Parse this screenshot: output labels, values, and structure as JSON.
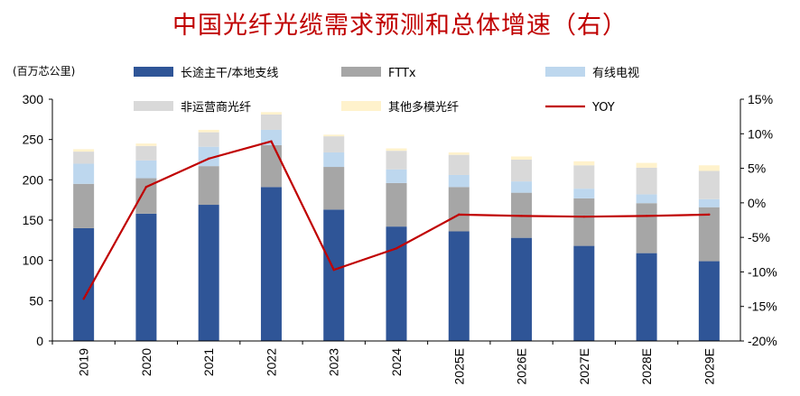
{
  "chart_data": {
    "type": "bar",
    "title": "中国光纤光缆需求预测和总体增速（右）",
    "ylabel": "(百万芯公里)",
    "categories": [
      "2019",
      "2020",
      "2021",
      "2022",
      "2023",
      "2024",
      "2025E",
      "2026E",
      "2027E",
      "2028E",
      "2029E"
    ],
    "ylim": [
      0,
      300
    ],
    "yticks": [
      0,
      50,
      100,
      150,
      200,
      250,
      300
    ],
    "y2lim": [
      -20,
      15
    ],
    "y2ticks": [
      "-20%",
      "-15%",
      "-10%",
      "-5%",
      "0%",
      "5%",
      "10%",
      "15%"
    ],
    "y2tick_values": [
      -20,
      -15,
      -10,
      -5,
      0,
      5,
      10,
      15
    ],
    "legend_position": "top",
    "series": [
      {
        "name": "长途主干/本地支线",
        "type": "stacked-bar",
        "color": "#2f5597",
        "values": [
          140,
          158,
          169,
          191,
          163,
          142,
          136,
          128,
          118,
          109,
          99
        ]
      },
      {
        "name": "FTTx",
        "type": "stacked-bar",
        "color": "#a6a6a6",
        "values": [
          55,
          44,
          48,
          52,
          53,
          54,
          55,
          56,
          59,
          62,
          67
        ]
      },
      {
        "name": "有线电视",
        "type": "stacked-bar",
        "color": "#bdd7ee",
        "values": [
          25,
          22,
          24,
          19,
          18,
          17,
          15,
          14,
          12,
          11,
          10
        ]
      },
      {
        "name": "非运营商光纤",
        "type": "stacked-bar",
        "color": "#d9d9d9",
        "values": [
          15,
          18,
          18,
          19,
          20,
          23,
          25,
          27,
          29,
          33,
          35
        ]
      },
      {
        "name": "其他多模光纤",
        "type": "stacked-bar",
        "color": "#fff2cc",
        "values": [
          3,
          3,
          3,
          3,
          2,
          3,
          3,
          4,
          5,
          6,
          7
        ]
      },
      {
        "name": "YOY",
        "type": "line",
        "axis": "right",
        "color": "#c00000",
        "values": [
          -13.9,
          2.3,
          6.4,
          8.9,
          -9.7,
          -6.6,
          -1.7,
          -1.9,
          -2.0,
          -1.9,
          -1.7
        ]
      }
    ]
  }
}
